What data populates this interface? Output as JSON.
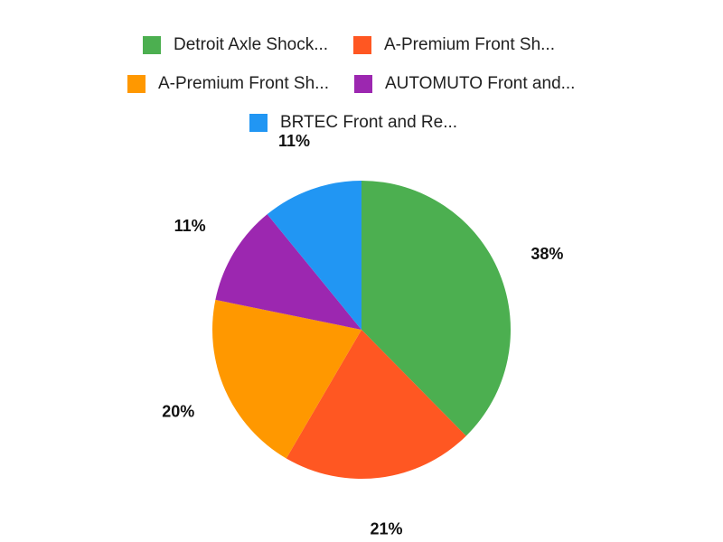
{
  "chart_data": {
    "type": "pie",
    "categories": [
      "Detroit Axle Shock...",
      "A-Premium Front Sh...",
      "A-Premium Front Sh...",
      "AUTOMUTO Front and...",
      "BRTEC Front and Re..."
    ],
    "values": [
      38,
      21,
      20,
      11,
      11
    ],
    "labels": [
      "38%",
      "21%",
      "20%",
      "11%",
      "11%"
    ],
    "colors": [
      "#4CAF50",
      "#FF5722",
      "#FF9800",
      "#9C27B0",
      "#2196F3"
    ],
    "legend_position": "top"
  }
}
